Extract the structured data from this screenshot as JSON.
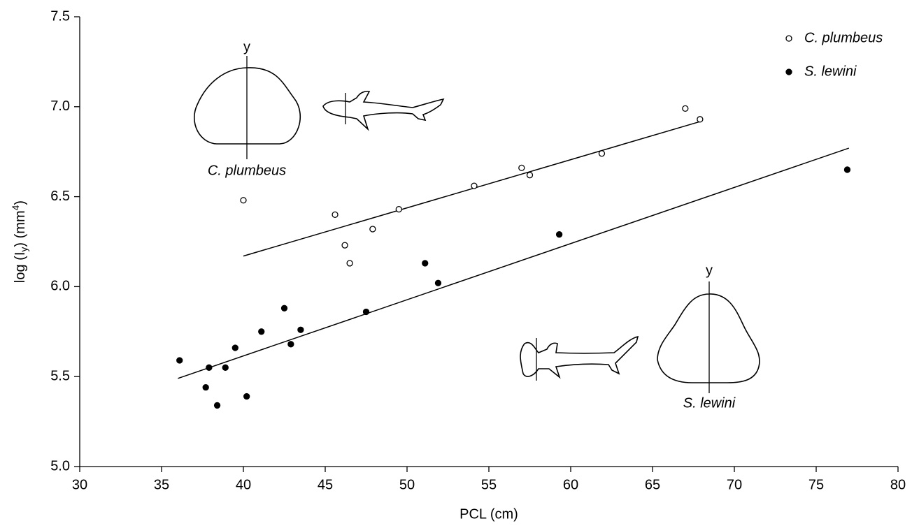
{
  "chart_data": {
    "type": "scatter",
    "xlabel": "PCL (cm)",
    "ylabel_parts": [
      "log (I",
      "y",
      ") (mm",
      "4",
      ")"
    ],
    "xlim": [
      30,
      80
    ],
    "ylim": [
      5.0,
      7.5
    ],
    "xticks": [
      30,
      35,
      40,
      45,
      50,
      55,
      60,
      65,
      70,
      75,
      80
    ],
    "yticks": [
      {
        "value": 5.0,
        "label": "5.0"
      },
      5.5,
      {
        "value": 6.0,
        "label": "6.0"
      },
      6.5,
      {
        "value": 7.0,
        "label": "7.0"
      },
      7.5
    ],
    "legend": "upper right",
    "series": [
      {
        "name": "C. plumbeus",
        "color": "#000000",
        "marker": "open",
        "x": [
          40.0,
          45.6,
          46.2,
          46.5,
          47.9,
          49.5,
          54.1,
          57.0,
          57.5,
          61.9,
          67.0,
          67.9
        ],
        "values": [
          6.48,
          6.4,
          6.23,
          6.13,
          6.32,
          6.43,
          6.56,
          6.66,
          6.62,
          6.74,
          6.99,
          6.93
        ]
      },
      {
        "name": "S. lewini",
        "color": "#000000",
        "marker": "filled",
        "x": [
          36.1,
          37.7,
          37.9,
          38.4,
          38.9,
          39.5,
          40.2,
          41.1,
          42.5,
          42.9,
          43.5,
          47.5,
          51.1,
          51.9,
          59.3,
          76.9
        ],
        "values": [
          5.59,
          5.44,
          5.55,
          5.34,
          5.55,
          5.66,
          5.39,
          5.75,
          5.88,
          5.68,
          5.76,
          5.86,
          6.13,
          6.02,
          6.29,
          6.65
        ]
      }
    ],
    "trendlines": [
      {
        "color": "#000000",
        "x": [
          40,
          68
        ],
        "values": [
          6.17,
          6.92
        ]
      },
      {
        "color": "#000000",
        "x": [
          36,
          77
        ],
        "values": [
          5.49,
          6.77
        ]
      }
    ],
    "annotations": [
      "y",
      "C. plumbeus",
      "y",
      "S. lewini"
    ]
  }
}
